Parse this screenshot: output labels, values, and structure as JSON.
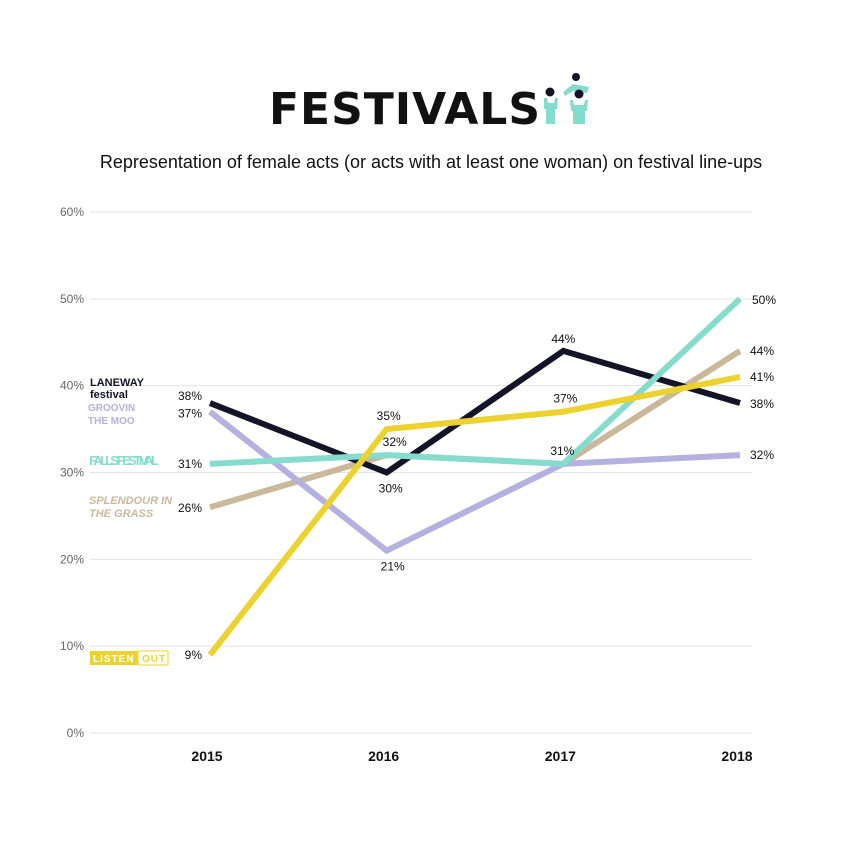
{
  "header": {
    "title": "FESTIVALS",
    "subtitle": "Representation of female acts (or acts with at least one woman) on festival line-ups"
  },
  "chart_data": {
    "type": "line",
    "title": "FESTIVALS",
    "subtitle": "Representation of female acts (or acts with at least one woman) on festival line-ups",
    "xlabel": "",
    "ylabel": "",
    "x": [
      "2015",
      "2016",
      "2017",
      "2018"
    ],
    "ylim": [
      0,
      60
    ],
    "yticks": [
      0,
      10,
      20,
      30,
      40,
      50,
      60
    ],
    "ytick_labels": [
      "0%",
      "10%",
      "20%",
      "30%",
      "40%",
      "50%",
      "60%"
    ],
    "grid": true,
    "legend": "direct labels at left of lines",
    "series": [
      {
        "name": "SPLENDOUR IN THE GRASS",
        "label_lines": [
          "SPLENDOUR IN",
          "THE GRASS"
        ],
        "color": "#c9b99a",
        "values": [
          26,
          32,
          31,
          44
        ],
        "value_labels": [
          "26%",
          "32%",
          null,
          "44%"
        ]
      },
      {
        "name": "GROOVIN THE MOO",
        "label_lines": [
          "GROOVIN",
          "THE MOO"
        ],
        "color": "#b4b0e0",
        "values": [
          37,
          21,
          31,
          32
        ],
        "value_labels": [
          "37%",
          "21%",
          null,
          "32%"
        ]
      },
      {
        "name": "LANEWAY festival",
        "label_lines": [
          "LANEWAY",
          "festival"
        ],
        "color": "#141428",
        "values": [
          38,
          30,
          44,
          38
        ],
        "value_labels": [
          "38%",
          "30%",
          "44%",
          "38%"
        ]
      },
      {
        "name": "FALLS FESTIVAL",
        "label_lines": [
          "FALLS FESTIVAL"
        ],
        "color": "#86dccc",
        "values": [
          31,
          32,
          31,
          50
        ],
        "value_labels": [
          "31%",
          null,
          "31%",
          "50%"
        ]
      },
      {
        "name": "LISTEN OUT",
        "label_lines": [
          "LISTEN",
          "OUT"
        ],
        "color": "#ecd22e",
        "values": [
          9,
          35,
          37,
          41
        ],
        "value_labels": [
          "9%",
          "35%",
          "37%",
          "41%"
        ]
      }
    ]
  }
}
